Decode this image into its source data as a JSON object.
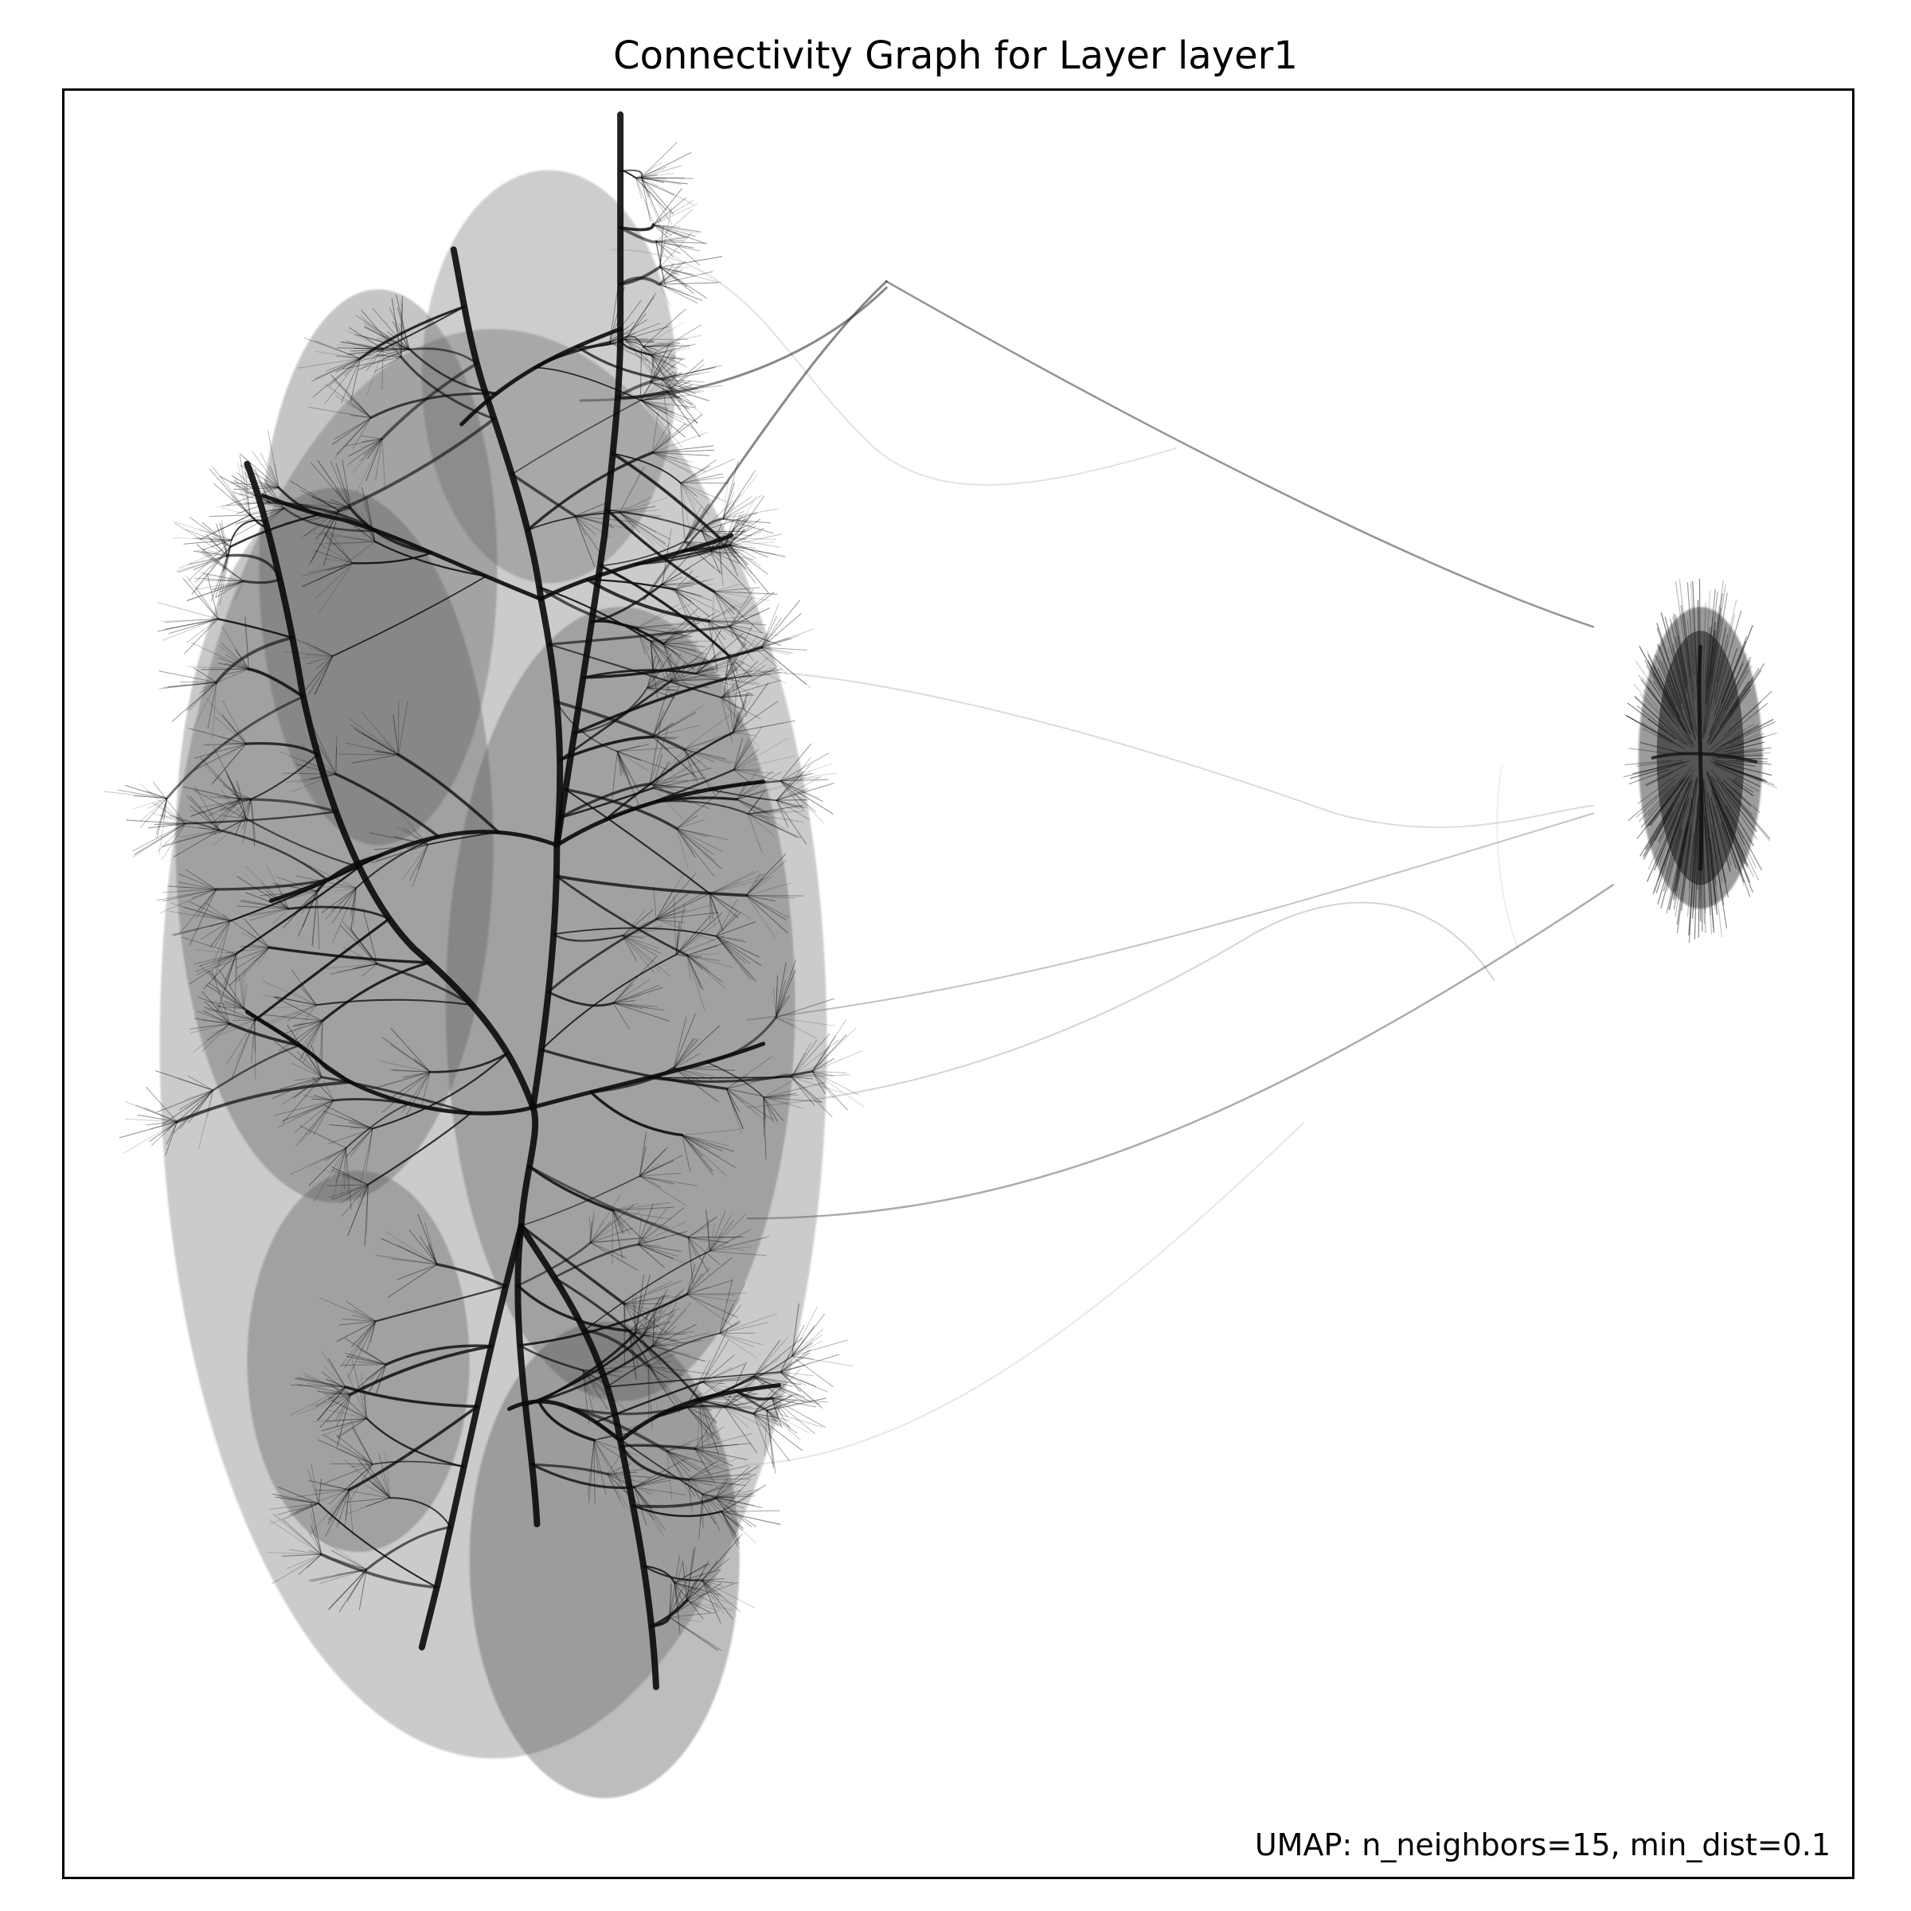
{
  "title": "Connectivity Graph for Layer layer1",
  "caption": "UMAP: n_neighbors=15, min_dist=0.1",
  "colors": {
    "background": "#ffffff",
    "edge": "#111111",
    "frame": "#000000"
  },
  "diagram": {
    "type": "umap-connectivity-graph",
    "clusters": [
      {
        "name": "main-cluster",
        "description_shape": "large branching tree-like cluster"
      },
      {
        "name": "small-cluster",
        "description_shape": "compact oval cluster"
      }
    ]
  }
}
